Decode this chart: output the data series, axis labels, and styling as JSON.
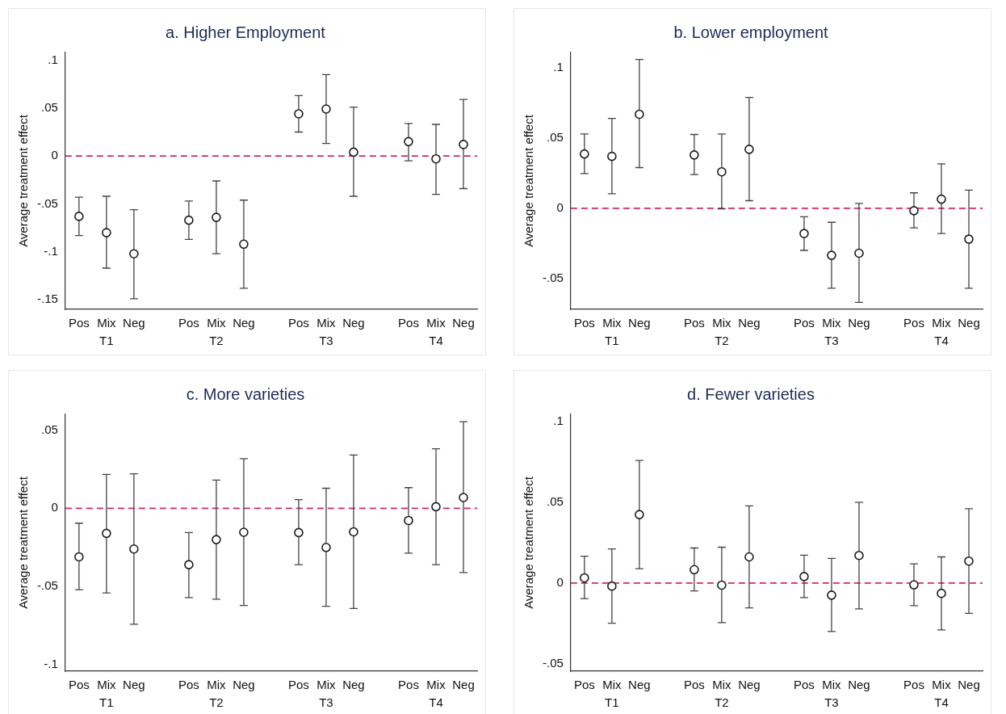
{
  "chart_data": [
    {
      "type": "scatter",
      "title": "a. Higher Employment",
      "ylabel": "Average treatment effect",
      "categories": [
        "Pos",
        "Mix",
        "Neg",
        "Pos",
        "Mix",
        "Neg",
        "Pos",
        "Mix",
        "Neg",
        "Pos",
        "Mix",
        "Neg"
      ],
      "annotations": [
        "T1",
        "T2",
        "T3",
        "T4"
      ],
      "marker": "circle",
      "ylim": [
        -0.16,
        0.108
      ],
      "yticks": [
        {
          "value": 0.1,
          "label": ".1"
        },
        {
          "value": 0.05,
          "label": ".05"
        },
        {
          "value": 0,
          "label": "0"
        },
        {
          "value": -0.05,
          "label": "-.05"
        },
        {
          "value": -0.1,
          "label": "-.1"
        },
        {
          "value": -0.15,
          "label": "-.15"
        }
      ],
      "ref_lines": [
        {
          "axis": "y",
          "value": 0,
          "color": "#d1285a",
          "line_style": "dashed"
        }
      ],
      "series": [
        {
          "color": "#1a1a1a",
          "values": [
            -0.063,
            -0.08,
            -0.102,
            -0.067,
            -0.064,
            -0.092,
            0.044,
            0.049,
            0.004,
            0.015,
            -0.003,
            0.012
          ],
          "errors": [
            [
              -0.083,
              -0.043
            ],
            [
              -0.117,
              -0.042
            ],
            [
              -0.149,
              -0.056
            ],
            [
              -0.087,
              -0.047
            ],
            [
              -0.102,
              -0.026
            ],
            [
              -0.138,
              -0.046
            ],
            [
              0.025,
              0.063
            ],
            [
              0.013,
              0.085
            ],
            [
              -0.042,
              0.051
            ],
            [
              -0.005,
              0.034
            ],
            [
              -0.04,
              0.033
            ],
            [
              -0.034,
              0.059
            ]
          ]
        }
      ]
    },
    {
      "type": "scatter",
      "title": "b. Lower employment",
      "ylabel": "Average treatment effect",
      "categories": [
        "Pos",
        "Mix",
        "Neg",
        "Pos",
        "Mix",
        "Neg",
        "Pos",
        "Mix",
        "Neg",
        "Pos",
        "Mix",
        "Neg"
      ],
      "annotations": [
        "T1",
        "T2",
        "T3",
        "T4"
      ],
      "marker": "circle",
      "ylim": [
        -0.072,
        0.111
      ],
      "yticks": [
        {
          "value": 0.1,
          "label": ".1"
        },
        {
          "value": 0.05,
          "label": ".05"
        },
        {
          "value": 0,
          "label": "0"
        },
        {
          "value": -0.05,
          "label": "-.05"
        }
      ],
      "ref_lines": [
        {
          "axis": "y",
          "value": 0,
          "color": "#d1285a",
          "line_style": "dashed"
        }
      ],
      "series": [
        {
          "color": "#1a1a1a",
          "values": [
            0.0387,
            0.037,
            0.067,
            0.038,
            0.026,
            0.042,
            -0.018,
            -0.0335,
            -0.032,
            -0.0017,
            0.0065,
            -0.022
          ],
          "errors": [
            [
              0.0247,
              0.053
            ],
            [
              0.0104,
              0.064
            ],
            [
              0.029,
              0.106
            ],
            [
              0.024,
              0.0526
            ],
            [
              -0.0004,
              0.053
            ],
            [
              0.0054,
              0.079
            ],
            [
              -0.03,
              -0.006
            ],
            [
              -0.057,
              -0.01
            ],
            [
              -0.067,
              0.0035
            ],
            [
              -0.014,
              0.011
            ],
            [
              -0.018,
              0.0316
            ],
            [
              -0.057,
              0.013
            ]
          ]
        }
      ]
    },
    {
      "type": "scatter",
      "title": "c. More varieties",
      "ylabel": "Average treatment effect",
      "categories": [
        "Pos",
        "Mix",
        "Neg",
        "Pos",
        "Mix",
        "Neg",
        "Pos",
        "Mix",
        "Neg",
        "Pos",
        "Mix",
        "Neg"
      ],
      "annotations": [
        "T1",
        "T2",
        "T3",
        "T4"
      ],
      "marker": "circle",
      "ylim": [
        -0.104,
        0.06
      ],
      "yticks": [
        {
          "value": 0.05,
          "label": ".05"
        },
        {
          "value": 0,
          "label": "0"
        },
        {
          "value": -0.05,
          "label": "-.05"
        },
        {
          "value": -0.1,
          "label": "-.1"
        }
      ],
      "ref_lines": [
        {
          "axis": "y",
          "value": 0,
          "color": "#d1285a",
          "line_style": "dashed"
        }
      ],
      "series": [
        {
          "color": "#1a1a1a",
          "values": [
            -0.031,
            -0.016,
            -0.026,
            -0.036,
            -0.02,
            -0.0153,
            -0.0155,
            -0.025,
            -0.015,
            -0.0078,
            0.001,
            0.0069
          ],
          "errors": [
            [
              -0.052,
              -0.0095
            ],
            [
              -0.054,
              0.0216
            ],
            [
              -0.074,
              0.022
            ],
            [
              -0.057,
              -0.0155
            ],
            [
              -0.058,
              0.018
            ],
            [
              -0.062,
              0.0317
            ],
            [
              -0.036,
              0.0055
            ],
            [
              -0.0626,
              0.0128
            ],
            [
              -0.064,
              0.034
            ],
            [
              -0.0286,
              0.0132
            ],
            [
              -0.036,
              0.038
            ],
            [
              -0.041,
              0.0553
            ]
          ]
        }
      ]
    },
    {
      "type": "scatter",
      "title": "d. Fewer varieties",
      "ylabel": "Average treatment effect",
      "categories": [
        "Pos",
        "Mix",
        "Neg",
        "Pos",
        "Mix",
        "Neg",
        "Pos",
        "Mix",
        "Neg",
        "Pos",
        "Mix",
        "Neg"
      ],
      "annotations": [
        "T1",
        "T2",
        "T3",
        "T4"
      ],
      "marker": "circle",
      "ylim": [
        -0.0546,
        0.1045
      ],
      "yticks": [
        {
          "value": 0.1,
          "label": ".1"
        },
        {
          "value": 0.05,
          "label": ".05"
        },
        {
          "value": 0,
          "label": "0"
        },
        {
          "value": -0.05,
          "label": "-.05"
        }
      ],
      "ref_lines": [
        {
          "axis": "y",
          "value": 0,
          "color": "#d1285a",
          "line_style": "dashed"
        }
      ],
      "series": [
        {
          "color": "#1a1a1a",
          "values": [
            0.0032,
            -0.0019,
            0.0424,
            0.0083,
            -0.0013,
            0.0162,
            0.004,
            -0.0075,
            0.0171,
            -0.0011,
            -0.0064,
            0.0136
          ],
          "errors": [
            [
              -0.0096,
              0.0166
            ],
            [
              -0.0249,
              0.0211
            ],
            [
              0.0089,
              0.0759
            ],
            [
              -0.0049,
              0.0217
            ],
            [
              -0.0245,
              0.0222
            ],
            [
              -0.0154,
              0.0478
            ],
            [
              -0.009,
              0.0173
            ],
            [
              -0.03,
              0.0153
            ],
            [
              -0.016,
              0.05
            ],
            [
              -0.014,
              0.0119
            ],
            [
              -0.029,
              0.0162
            ],
            [
              -0.0188,
              0.046
            ]
          ]
        }
      ]
    }
  ]
}
